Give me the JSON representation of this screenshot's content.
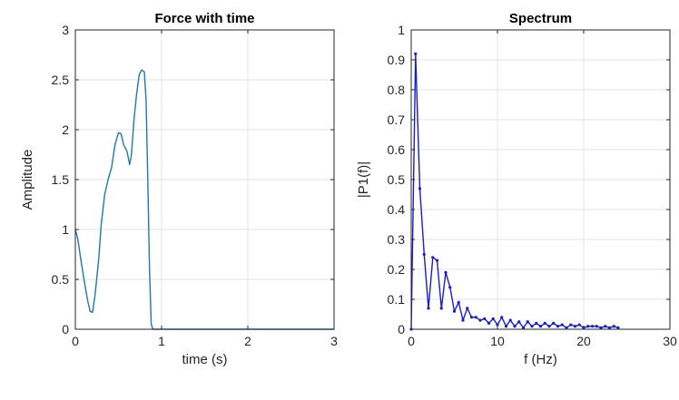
{
  "chart_data": [
    {
      "type": "line",
      "title": "Force with time",
      "xlabel": "time (s)",
      "ylabel": "Amplitude",
      "xlim": [
        0,
        3
      ],
      "ylim": [
        0,
        3
      ],
      "xticks": [
        0,
        1,
        2,
        3
      ],
      "xtick_labels": [
        "0",
        "1",
        "2",
        "3"
      ],
      "yticks": [
        0,
        0.5,
        1,
        1.5,
        2,
        2.5,
        3
      ],
      "ytick_labels": [
        "0",
        "0.5",
        "1",
        "1.5",
        "2",
        "2.5",
        "3"
      ],
      "grid": true,
      "series": [
        {
          "color": "#1f77b4",
          "marker": "none",
          "x": [
            0,
            0.03,
            0.06,
            0.1,
            0.14,
            0.17,
            0.2,
            0.23,
            0.27,
            0.3,
            0.34,
            0.38,
            0.42,
            0.46,
            0.5,
            0.53,
            0.56,
            0.6,
            0.63,
            0.65,
            0.68,
            0.71,
            0.74,
            0.77,
            0.8,
            0.82,
            0.84,
            0.86,
            0.88,
            0.9,
            0.92,
            1.0,
            1.5,
            2.0,
            2.5,
            3.0
          ],
          "y": [
            1.0,
            0.9,
            0.72,
            0.5,
            0.3,
            0.18,
            0.17,
            0.35,
            0.7,
            1.05,
            1.35,
            1.5,
            1.62,
            1.85,
            1.97,
            1.96,
            1.85,
            1.78,
            1.65,
            1.75,
            2.1,
            2.35,
            2.55,
            2.6,
            2.58,
            2.3,
            1.5,
            0.6,
            0.05,
            0,
            0,
            0,
            0,
            0,
            0,
            0
          ]
        }
      ]
    },
    {
      "type": "line",
      "title": "Spectrum",
      "xlabel": "f (Hz)",
      "ylabel": "|P1(f)|",
      "xlim": [
        0,
        30
      ],
      "ylim": [
        0,
        1
      ],
      "xticks": [
        0,
        10,
        20,
        30
      ],
      "xtick_labels": [
        "0",
        "10",
        "20",
        "30"
      ],
      "yticks": [
        0,
        0.1,
        0.2,
        0.3,
        0.4,
        0.5,
        0.6,
        0.7,
        0.8,
        0.9,
        1
      ],
      "ytick_labels": [
        "0",
        "0.1",
        "0.2",
        "0.3",
        "0.4",
        "0.5",
        "0.6",
        "0.7",
        "0.8",
        "0.9",
        "1"
      ],
      "grid": true,
      "series": [
        {
          "color": "#1a1adb",
          "marker": "dot",
          "x": [
            0,
            0.5,
            1.0,
            1.5,
            2.0,
            2.5,
            3.0,
            3.5,
            4.0,
            4.5,
            5.0,
            5.5,
            6.0,
            6.5,
            7.0,
            7.5,
            8.0,
            8.5,
            9.0,
            9.5,
            10.0,
            10.5,
            11.0,
            11.5,
            12.0,
            12.5,
            13.0,
            13.5,
            14.0,
            14.5,
            15.0,
            15.5,
            16.0,
            16.5,
            17.0,
            17.5,
            18.0,
            18.5,
            19.0,
            19.5,
            20.0,
            20.5,
            21.0,
            21.5,
            22.0,
            22.5,
            23.0,
            23.5,
            24.0
          ],
          "y": [
            0,
            0.92,
            0.47,
            0.25,
            0.07,
            0.24,
            0.23,
            0.07,
            0.19,
            0.14,
            0.06,
            0.09,
            0.03,
            0.07,
            0.04,
            0.04,
            0.03,
            0.035,
            0.02,
            0.035,
            0.015,
            0.04,
            0.01,
            0.03,
            0.01,
            0.025,
            0.005,
            0.025,
            0.01,
            0.02,
            0.01,
            0.02,
            0.01,
            0.02,
            0.01,
            0.015,
            0.005,
            0.015,
            0.01,
            0.015,
            0.005,
            0.01,
            0.01,
            0.01,
            0.005,
            0.01,
            0.005,
            0.01,
            0.005
          ]
        }
      ]
    }
  ]
}
